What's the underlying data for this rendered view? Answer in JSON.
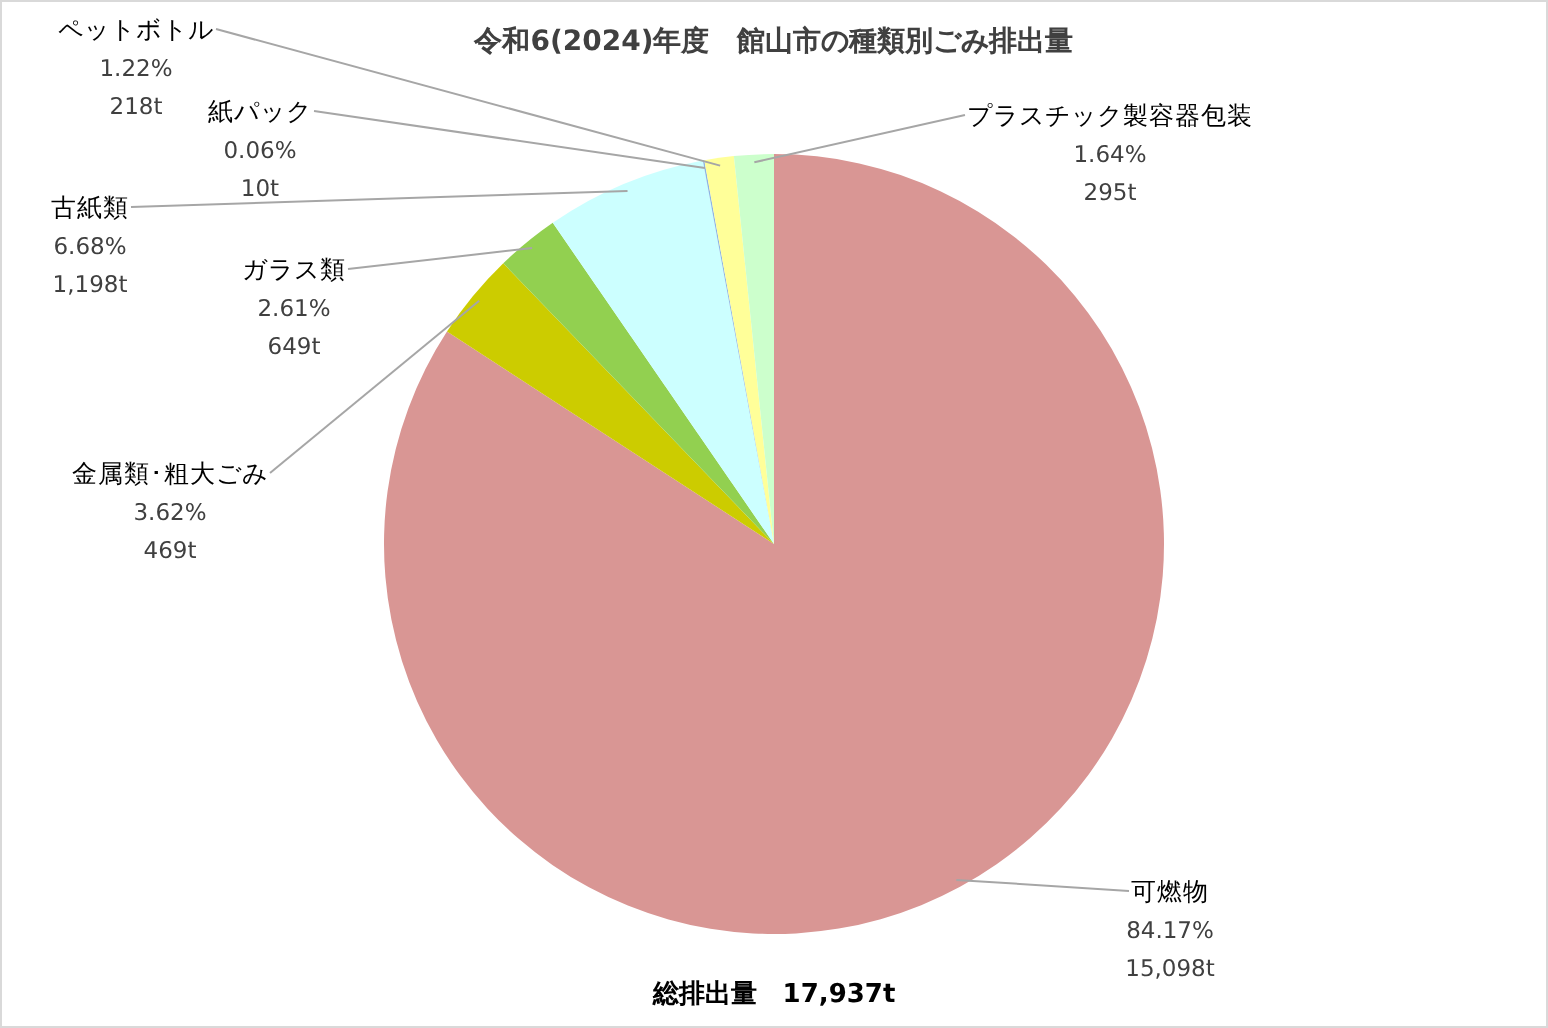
{
  "chart_data": {
    "type": "pie",
    "title": "令和6(2024)年度　館山市の種類別ごみ排出量",
    "categories": [
      "可燃物",
      "金属類･粗大ごみ",
      "ガラス類",
      "古紙類",
      "紙パック",
      "ペットボトル",
      "プラスチック製容器包装"
    ],
    "values": [
      84.17,
      3.62,
      2.61,
      6.68,
      0.06,
      1.22,
      1.64
    ],
    "value_labels": [
      "84.17%\n15,098t",
      "3.62%\n469t",
      "2.61%\n649t",
      "6.68%\n1,198t",
      "0.06%\n10t",
      "1.22%\n218t",
      "1.64%\n295t"
    ],
    "colors": [
      "#d99694",
      "#cccc00",
      "#92d050",
      "#ccffff",
      "#8db4e2",
      "#ffff99",
      "#ccffcc"
    ],
    "annotations": [
      "総排出量　17,937t"
    ]
  }
}
